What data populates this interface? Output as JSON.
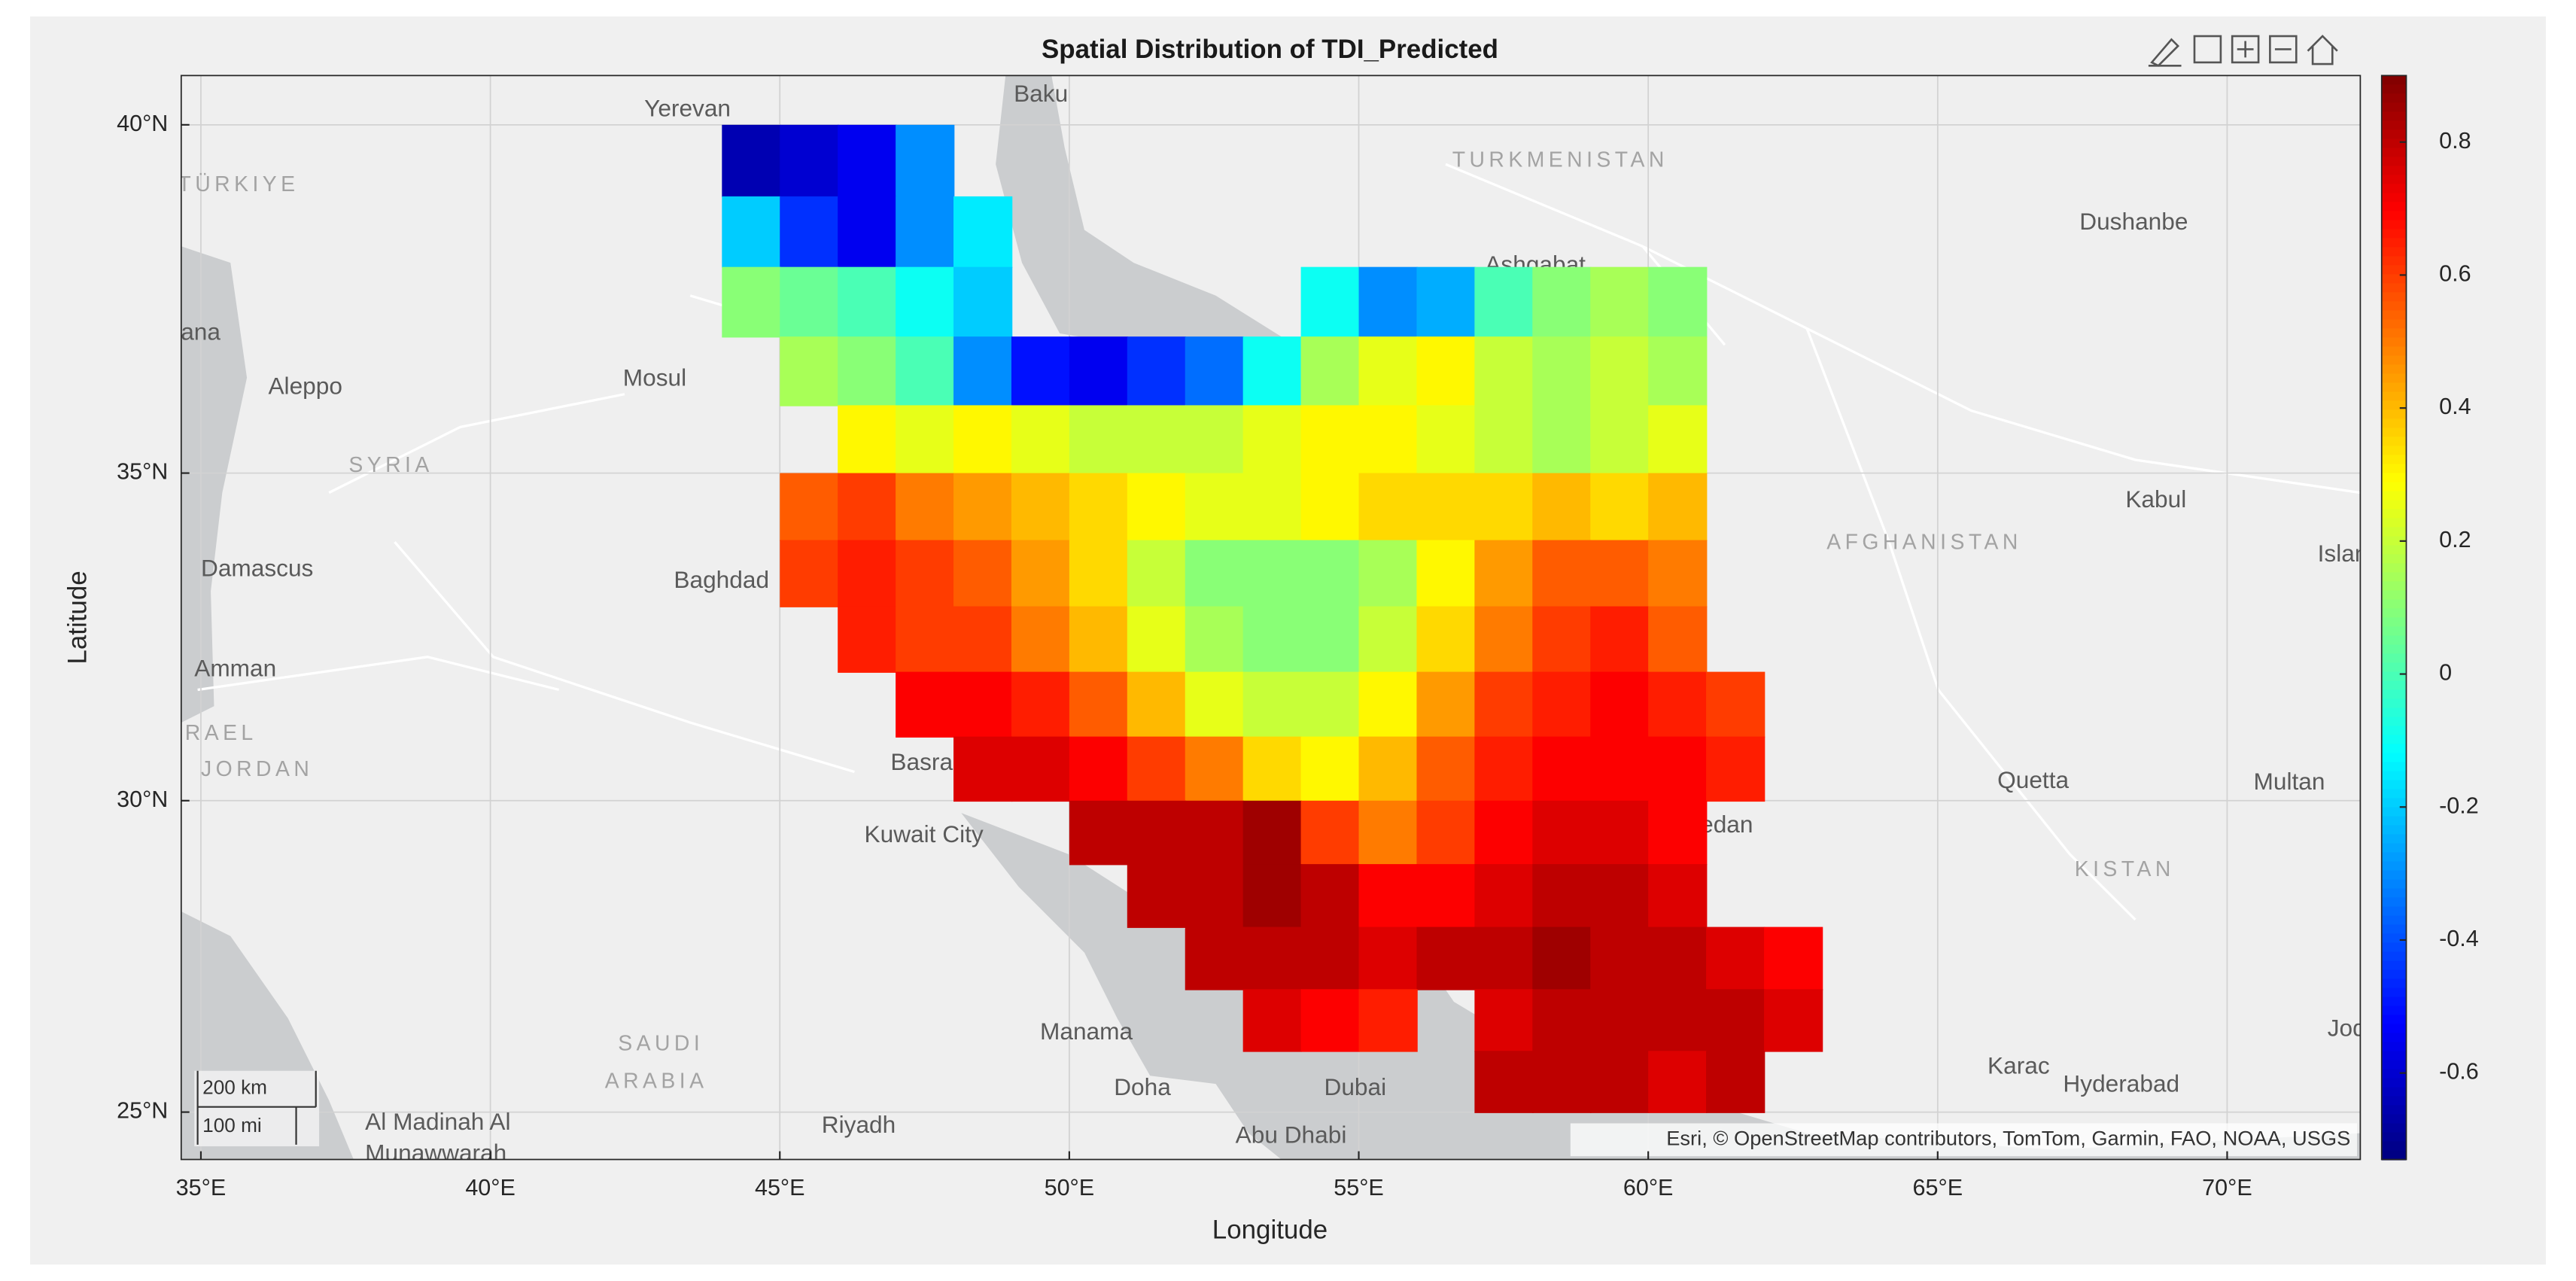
{
  "chart_data": {
    "type": "geoheatmap",
    "title": "Spatial Distribution of TDI_Predicted",
    "x_label": "Longitude",
    "y_label": "Latitude",
    "xlim": [
      34.66,
      72.3
    ],
    "ylim": [
      24.22,
      40.68
    ],
    "yscale": "mercator",
    "grid": true,
    "colormap": "jet",
    "xticks": [
      {
        "value": 35,
        "label": "35°E"
      },
      {
        "value": 40,
        "label": "40°E"
      },
      {
        "value": 45,
        "label": "45°E"
      },
      {
        "value": 50,
        "label": "50°E"
      },
      {
        "value": 55,
        "label": "55°E"
      },
      {
        "value": 60,
        "label": "60°E"
      },
      {
        "value": 65,
        "label": "65°E"
      },
      {
        "value": 70,
        "label": "70°E"
      }
    ],
    "yticks": [
      {
        "value": 25,
        "label": "25°N"
      },
      {
        "value": 30,
        "label": "30°N"
      },
      {
        "value": 35,
        "label": "35°N"
      },
      {
        "value": 40,
        "label": "40°N"
      }
    ],
    "colorbar": {
      "clim": [
        -0.73,
        0.9
      ],
      "ticks": [
        -0.6,
        -0.4,
        -0.2,
        0,
        0.2,
        0.4,
        0.6,
        0.8
      ]
    },
    "x": [
      44.5,
      45.5,
      46.5,
      47.5,
      48.5,
      49.5,
      50.5,
      51.5,
      52.5,
      53.5,
      54.5,
      55.5,
      56.5,
      57.5,
      58.5,
      59.5,
      60.5,
      61.5,
      62.5,
      63.5
    ],
    "y": [
      39.5,
      38.5,
      37.5,
      36.5,
      35.5,
      34.5,
      33.5,
      32.5,
      31.5,
      30.5,
      29.5,
      28.5,
      27.5,
      26.5,
      25.5
    ],
    "values": [
      [
        -0.65,
        -0.6,
        -0.55,
        -0.3,
        null,
        null,
        null,
        null,
        null,
        null,
        null,
        null,
        null,
        null,
        null,
        null,
        null,
        null,
        null,
        null
      ],
      [
        -0.2,
        -0.45,
        -0.55,
        -0.3,
        -0.15,
        null,
        null,
        null,
        null,
        null,
        null,
        null,
        null,
        null,
        null,
        null,
        null,
        null,
        null,
        null
      ],
      [
        0.1,
        0.05,
        0,
        -0.1,
        -0.2,
        null,
        null,
        null,
        null,
        null,
        -0.1,
        -0.3,
        -0.25,
        0,
        0.1,
        0.15,
        0.1,
        null,
        null,
        null
      ],
      [
        null,
        0.15,
        0.1,
        0,
        -0.3,
        -0.5,
        -0.55,
        -0.45,
        -0.35,
        -0.1,
        0.15,
        0.25,
        0.3,
        0.2,
        0.15,
        0.2,
        0.15,
        null,
        null,
        null
      ],
      [
        null,
        null,
        0.3,
        0.25,
        0.3,
        0.25,
        0.2,
        0.2,
        0.2,
        0.25,
        0.3,
        0.3,
        0.25,
        0.2,
        0.15,
        0.2,
        0.25,
        null,
        null,
        null
      ],
      [
        null,
        0.55,
        0.6,
        0.5,
        0.45,
        0.4,
        0.35,
        0.3,
        0.25,
        0.25,
        0.3,
        0.35,
        0.35,
        0.35,
        0.4,
        0.35,
        0.4,
        null,
        null,
        null
      ],
      [
        null,
        0.6,
        0.65,
        0.6,
        0.55,
        0.45,
        0.35,
        0.2,
        0.1,
        0.1,
        0.1,
        0.15,
        0.3,
        0.45,
        0.55,
        0.55,
        0.5,
        null,
        null,
        null
      ],
      [
        null,
        null,
        0.65,
        0.6,
        0.6,
        0.5,
        0.4,
        0.25,
        0.15,
        0.1,
        0.1,
        0.2,
        0.35,
        0.5,
        0.6,
        0.65,
        0.55,
        null,
        null,
        null
      ],
      [
        null,
        null,
        null,
        0.7,
        0.7,
        0.65,
        0.55,
        0.4,
        0.25,
        0.2,
        0.2,
        0.3,
        0.45,
        0.6,
        0.65,
        0.7,
        0.65,
        0.6,
        null,
        null
      ],
      [
        null,
        null,
        null,
        null,
        0.75,
        0.75,
        0.7,
        0.6,
        0.5,
        0.35,
        0.3,
        0.4,
        0.55,
        0.65,
        0.7,
        0.7,
        0.7,
        0.65,
        null,
        null
      ],
      [
        null,
        null,
        null,
        null,
        null,
        null,
        0.8,
        0.8,
        0.8,
        0.85,
        0.6,
        0.5,
        0.6,
        0.7,
        0.75,
        0.75,
        0.7,
        null,
        null,
        null
      ],
      [
        null,
        null,
        null,
        null,
        null,
        null,
        null,
        0.8,
        0.8,
        0.85,
        0.8,
        0.7,
        0.7,
        0.75,
        0.8,
        0.8,
        0.75,
        null,
        null,
        null
      ],
      [
        null,
        null,
        null,
        null,
        null,
        null,
        null,
        null,
        0.8,
        0.8,
        0.8,
        0.75,
        0.8,
        0.8,
        0.85,
        0.8,
        0.8,
        0.75,
        0.7,
        null
      ],
      [
        null,
        null,
        null,
        null,
        null,
        null,
        null,
        null,
        null,
        0.75,
        0.7,
        0.65,
        null,
        0.75,
        0.8,
        0.8,
        0.8,
        0.8,
        0.75,
        null
      ],
      [
        null,
        null,
        null,
        null,
        null,
        null,
        null,
        null,
        null,
        null,
        null,
        null,
        null,
        0.8,
        0.8,
        0.8,
        0.75,
        0.8,
        null,
        null
      ]
    ],
    "basemap": {
      "labels": [
        "Yerevan",
        "Baku",
        "TURKMENISTAN",
        "TÜRKIYE",
        "Dushanbe",
        "Ashgabat",
        "Adana",
        "Aleppo",
        "Mosul",
        "SYRIA",
        "Kabul",
        "AFGHANISTAN",
        "Damascus",
        "Baghdad",
        "Islamabad",
        "Amman",
        "ISRAEL",
        "JORDAN",
        "Basra",
        "Quetta",
        "Multan",
        "Kuwait City",
        "Zahedan",
        "KISTAN",
        "SAUDI",
        "ARABIA",
        "Manama",
        "Jodhpur",
        "Hyderabad",
        "Doha",
        "Dubai",
        "Karac",
        "Riyadh",
        "Abu Dhabi",
        "Al Madinah Al",
        "Munawwarah"
      ],
      "attribution": "Esri, © OpenStreetMap contributors, TomTom, Garmin, FAO, NOAA, USGS",
      "scalebar": [
        "200 km",
        "100 mi"
      ]
    }
  }
}
